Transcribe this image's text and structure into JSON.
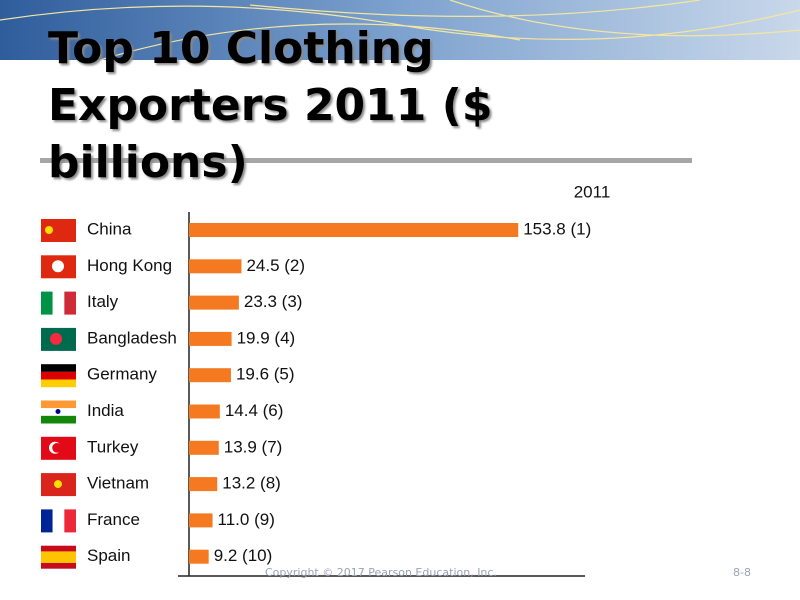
{
  "chart_data": {
    "type": "hbar",
    "title": "Top 10 Clothing Exporters 2011 ($ billions)",
    "categories": [
      "China",
      "Hong Kong",
      "Italy",
      "Bangladesh",
      "Germany",
      "India",
      "Turkey",
      "Vietnam",
      "France",
      "Spain"
    ],
    "series": [
      {
        "name": "2011",
        "color": "#f47920",
        "values": [
          153.8,
          24.5,
          23.3,
          19.9,
          19.6,
          14.4,
          13.9,
          13.2,
          11.0,
          9.2
        ],
        "value_labels": [
          "153.8 (1)",
          "24.5 (2)",
          "23.3 (3)",
          "19.9 (4)",
          "19.6 (5)",
          "14.4 (6)",
          "13.9 (7)",
          "13.2 (8)",
          "11.0 (9)",
          "9.2 (10)"
        ]
      }
    ],
    "xlim": [
      0,
      185
    ]
  },
  "footer": {
    "copyright": "Copyright © 2017 Pearson Education, Inc.",
    "page": "8-8"
  }
}
